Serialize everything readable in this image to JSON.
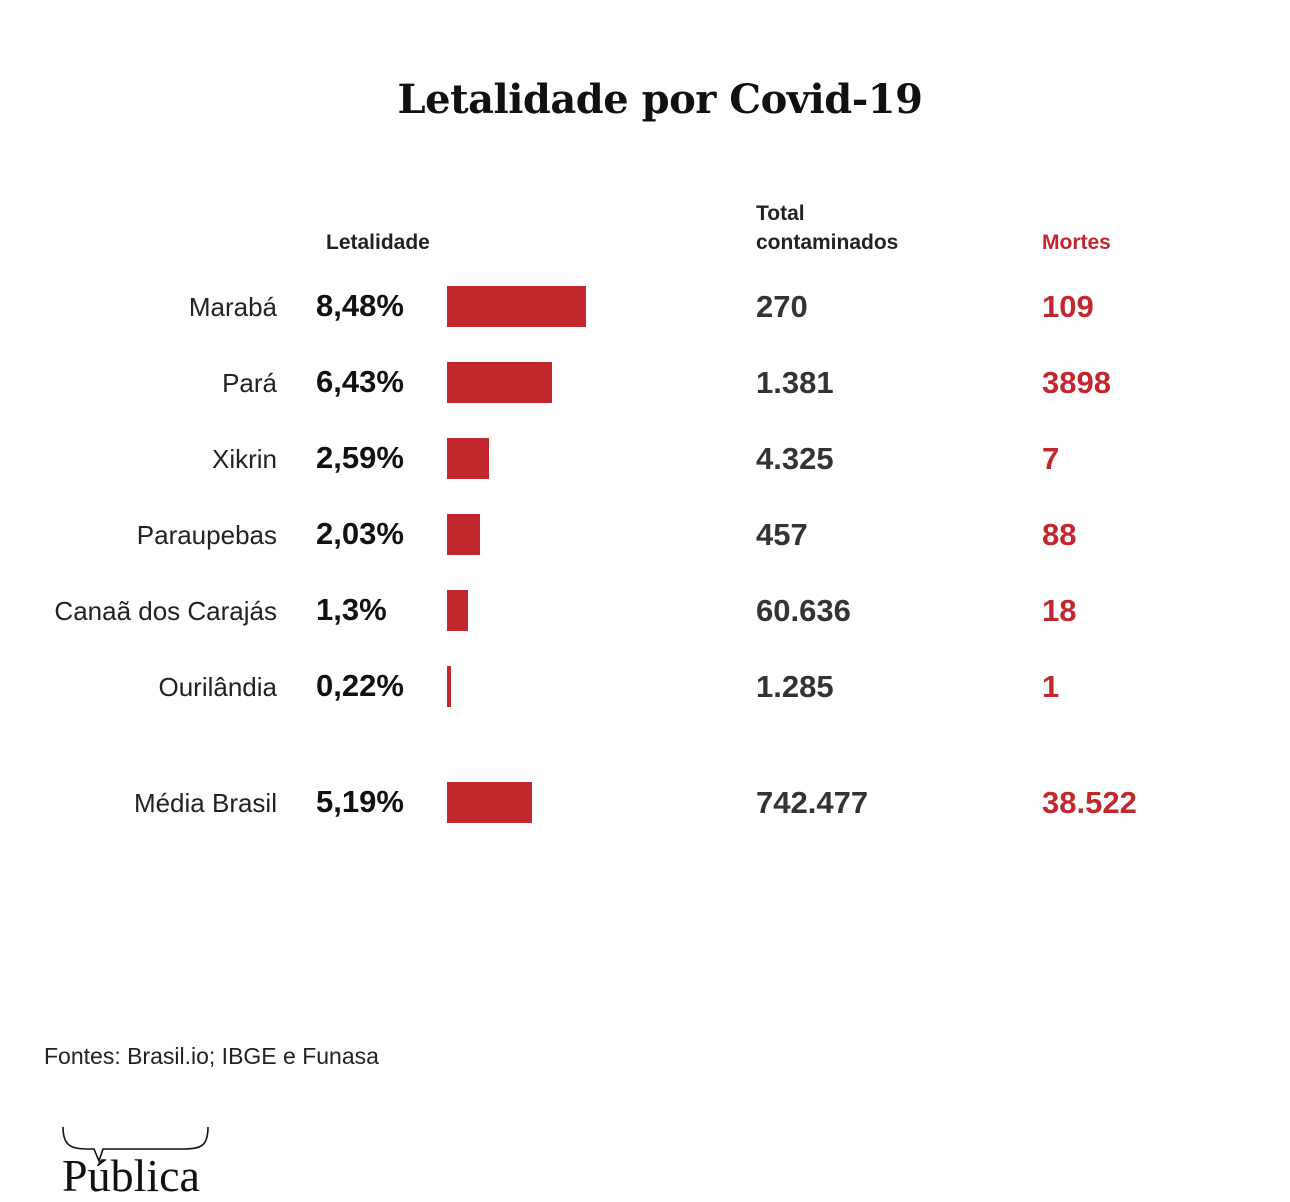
{
  "chart_data": {
    "type": "bar",
    "orientation": "horizontal",
    "title": "Letalidade por Covid-19",
    "columns": {
      "letalidade": "Letalidade",
      "total": "Total contaminados",
      "mortes": "Mortes"
    },
    "categories": [
      "Marabá",
      "Pará",
      "Xikrin",
      "Paraupebas",
      "Canaã dos Carajás",
      "Ourilândia",
      "Média Brasil"
    ],
    "values": [
      8.48,
      6.43,
      2.59,
      2.03,
      1.3,
      0.22,
      5.19
    ],
    "value_labels": [
      "8,48%",
      "6,43%",
      "2,59%",
      "2,03%",
      "1,3%",
      "0,22%",
      "5,19%"
    ],
    "total_contaminados": [
      "270",
      "1.381",
      "4.325",
      "457",
      "60.636",
      "1.285",
      "742.477"
    ],
    "mortes": [
      "109",
      "3898",
      "7",
      "88",
      "18",
      "1",
      "38.522"
    ],
    "bar_color": "#c1272d",
    "mortes_color": "#c1272d"
  },
  "header": {
    "total_line1": "Total",
    "total_line2": "contaminados"
  },
  "footer": {
    "source": "Fontes: Brasil.io; IBGE e Funasa",
    "logo": "Pública"
  }
}
